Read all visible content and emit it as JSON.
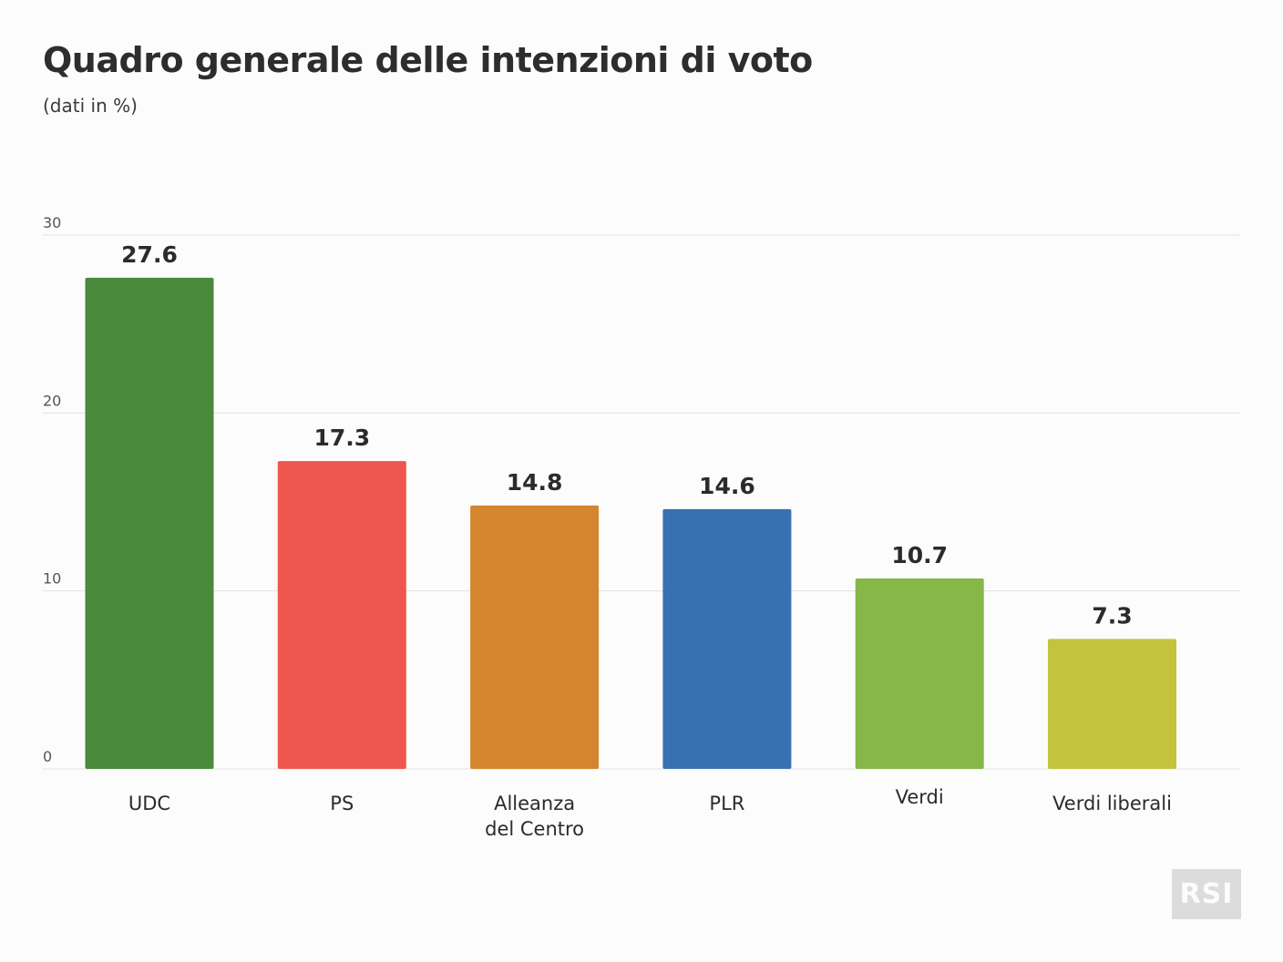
{
  "chart_data": {
    "type": "bar",
    "title": "Quadro generale delle intenzioni di voto",
    "subtitle": "(dati in %)",
    "categories": [
      "UDC",
      "PS",
      "Alleanza del Centro",
      "PLR",
      "Verdi",
      "Verdi liberali"
    ],
    "category_lines": [
      [
        "UDC"
      ],
      [
        "PS"
      ],
      [
        "Alleanza",
        "del Centro"
      ],
      [
        "PLR"
      ],
      [
        "Verdi"
      ],
      [
        "Verdi liberali"
      ]
    ],
    "values": [
      27.6,
      17.3,
      14.8,
      14.6,
      10.7,
      7.3
    ],
    "value_labels": [
      "27.6",
      "17.3",
      "14.8",
      "14.6",
      "10.7",
      "7.3"
    ],
    "colors": [
      "#4a8a3d",
      "#ef564e",
      "#d5852e",
      "#3871b3",
      "#86b748",
      "#c4c33e"
    ],
    "yticks": [
      0,
      10,
      20,
      30
    ],
    "ylim": [
      0,
      30
    ],
    "grid": true,
    "legend": "none"
  },
  "logo": "RSI"
}
